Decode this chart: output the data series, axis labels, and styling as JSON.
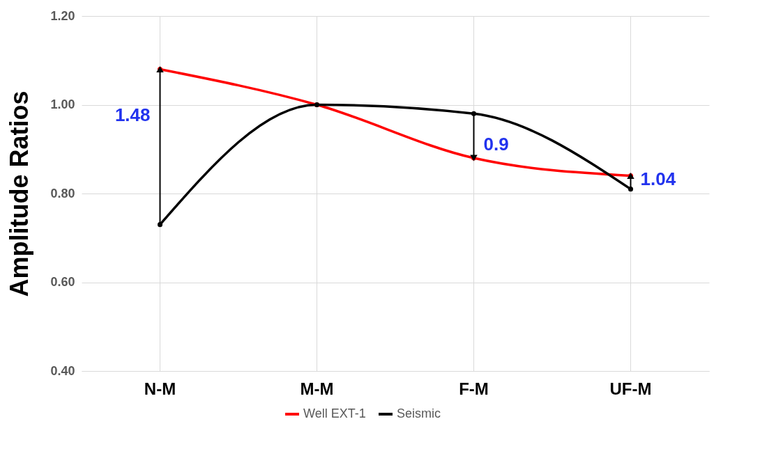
{
  "chart_data": {
    "type": "line",
    "ylabel": "Amplitude Ratios",
    "categories": [
      "N-M",
      "M-M",
      "F-M",
      "UF-M"
    ],
    "series": [
      {
        "name": "Well EXT-1",
        "color": "#ff0000",
        "values": [
          1.08,
          1.0,
          0.88,
          0.84
        ]
      },
      {
        "name": "Seismic",
        "color": "#000000",
        "values": [
          0.73,
          1.0,
          0.98,
          0.81
        ]
      }
    ],
    "ylim": [
      0.4,
      1.2
    ],
    "yticks": [
      {
        "value": 0.4,
        "label": "0.40"
      },
      {
        "value": 0.6,
        "label": "0.60"
      },
      {
        "value": 0.8,
        "label": "0.80"
      },
      {
        "value": 1.0,
        "label": "1.00"
      },
      {
        "value": 1.2,
        "label": "1.20"
      }
    ],
    "annotations": [
      {
        "text": "1.48",
        "x": "N-M",
        "y": 1.08
      },
      {
        "text": "0.9",
        "x": "F-M",
        "y": 0.88
      },
      {
        "text": "1.04",
        "x": "UF-M",
        "y": 0.84
      }
    ],
    "grid": true,
    "legend": "bottom",
    "marker": "circle",
    "line_style": "solid"
  }
}
